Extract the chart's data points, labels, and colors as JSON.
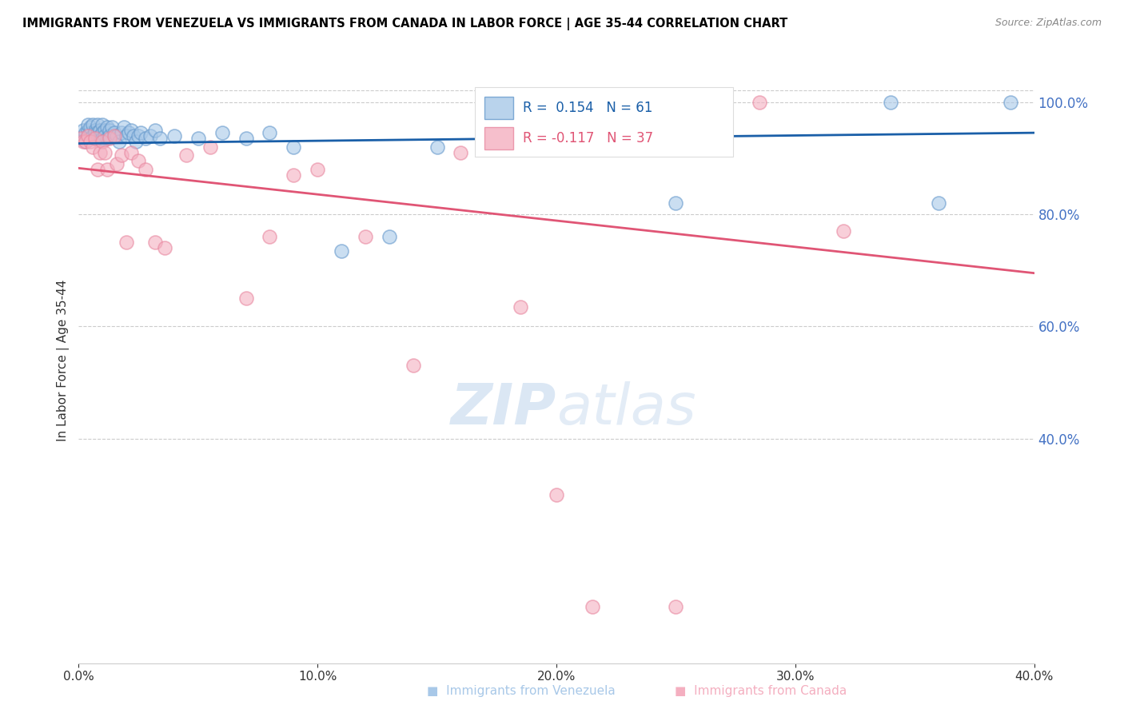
{
  "title": "IMMIGRANTS FROM VENEZUELA VS IMMIGRANTS FROM CANADA IN LABOR FORCE | AGE 35-44 CORRELATION CHART",
  "source": "Source: ZipAtlas.com",
  "ylabel": "In Labor Force | Age 35-44",
  "xlim": [
    0.0,
    0.4
  ],
  "ylim": [
    0.0,
    1.08
  ],
  "ytick_vals": [
    0.4,
    0.6,
    0.8,
    1.0
  ],
  "xtick_vals": [
    0.0,
    0.1,
    0.2,
    0.3,
    0.4
  ],
  "venezuela_color": "#a8c8e8",
  "canada_color": "#f4afc0",
  "venezuela_edge_color": "#6699cc",
  "canada_edge_color": "#e888a0",
  "venezuela_line_color": "#1a5fa8",
  "canada_line_color": "#e05575",
  "R_venezuela": 0.154,
  "N_venezuela": 61,
  "R_canada": -0.117,
  "N_canada": 37,
  "watermark_color": "#ccddf0",
  "right_tick_color": "#4472c4",
  "blue_line_x0": 0.0,
  "blue_line_y0": 0.926,
  "blue_line_x1": 0.4,
  "blue_line_y1": 0.945,
  "pink_line_x0": 0.0,
  "pink_line_y0": 0.882,
  "pink_line_x1": 0.4,
  "pink_line_y1": 0.695,
  "venezuela_x": [
    0.001,
    0.002,
    0.002,
    0.003,
    0.003,
    0.004,
    0.004,
    0.004,
    0.005,
    0.005,
    0.005,
    0.006,
    0.006,
    0.007,
    0.007,
    0.007,
    0.008,
    0.008,
    0.008,
    0.009,
    0.009,
    0.01,
    0.01,
    0.01,
    0.011,
    0.011,
    0.012,
    0.012,
    0.013,
    0.013,
    0.014,
    0.015,
    0.016,
    0.017,
    0.018,
    0.019,
    0.02,
    0.021,
    0.022,
    0.023,
    0.024,
    0.025,
    0.026,
    0.028,
    0.03,
    0.032,
    0.034,
    0.04,
    0.05,
    0.06,
    0.07,
    0.08,
    0.09,
    0.11,
    0.13,
    0.15,
    0.2,
    0.25,
    0.34,
    0.36,
    0.39
  ],
  "venezuela_y": [
    0.935,
    0.94,
    0.95,
    0.945,
    0.93,
    0.95,
    0.94,
    0.96,
    0.945,
    0.935,
    0.955,
    0.96,
    0.94,
    0.95,
    0.935,
    0.945,
    0.96,
    0.935,
    0.945,
    0.95,
    0.94,
    0.96,
    0.945,
    0.935,
    0.95,
    0.94,
    0.955,
    0.935,
    0.95,
    0.94,
    0.955,
    0.945,
    0.94,
    0.93,
    0.945,
    0.955,
    0.94,
    0.945,
    0.95,
    0.94,
    0.93,
    0.94,
    0.945,
    0.935,
    0.94,
    0.95,
    0.935,
    0.94,
    0.935,
    0.945,
    0.935,
    0.945,
    0.92,
    0.735,
    0.76,
    0.92,
    0.94,
    0.82,
    1.0,
    0.82,
    1.0
  ],
  "canada_x": [
    0.001,
    0.002,
    0.003,
    0.004,
    0.005,
    0.006,
    0.007,
    0.008,
    0.009,
    0.01,
    0.011,
    0.012,
    0.013,
    0.015,
    0.016,
    0.018,
    0.02,
    0.022,
    0.025,
    0.028,
    0.032,
    0.036,
    0.045,
    0.055,
    0.07,
    0.08,
    0.09,
    0.1,
    0.12,
    0.14,
    0.16,
    0.185,
    0.2,
    0.215,
    0.25,
    0.285,
    0.32
  ],
  "canada_y": [
    0.935,
    0.93,
    0.93,
    0.94,
    0.93,
    0.92,
    0.935,
    0.88,
    0.91,
    0.93,
    0.91,
    0.88,
    0.935,
    0.94,
    0.89,
    0.905,
    0.75,
    0.91,
    0.895,
    0.88,
    0.75,
    0.74,
    0.905,
    0.92,
    0.65,
    0.76,
    0.87,
    0.88,
    0.76,
    0.53,
    0.91,
    0.635,
    0.3,
    0.1,
    0.1,
    1.0,
    0.77
  ]
}
